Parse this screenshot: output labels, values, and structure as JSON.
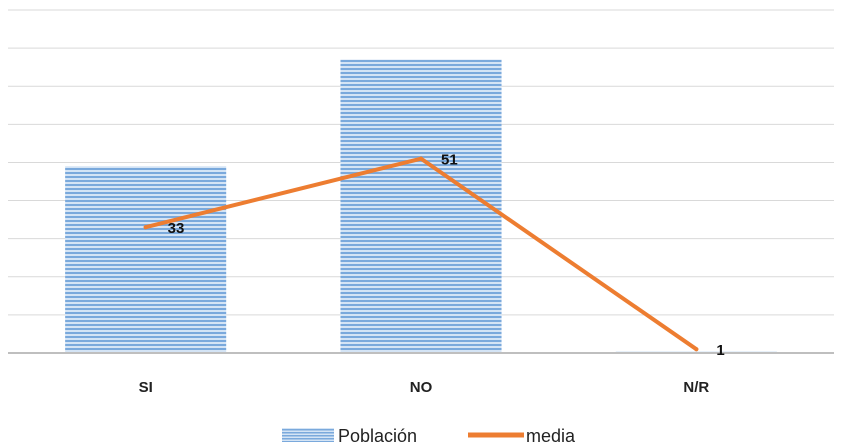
{
  "chart_data": {
    "type": "bar",
    "categories": [
      "SI",
      "NO",
      "N/R"
    ],
    "series": [
      {
        "name": "Población",
        "type": "bar",
        "values": [
          49,
          77,
          0.4
        ],
        "color": "#5B9BD5"
      },
      {
        "name": "media",
        "type": "line",
        "values": [
          33,
          51,
          1
        ],
        "color": "#ED7D31",
        "labels": [
          "33",
          "51",
          "1"
        ]
      }
    ],
    "ylim": [
      0,
      90
    ],
    "grid": true,
    "legend": "bottom"
  }
}
